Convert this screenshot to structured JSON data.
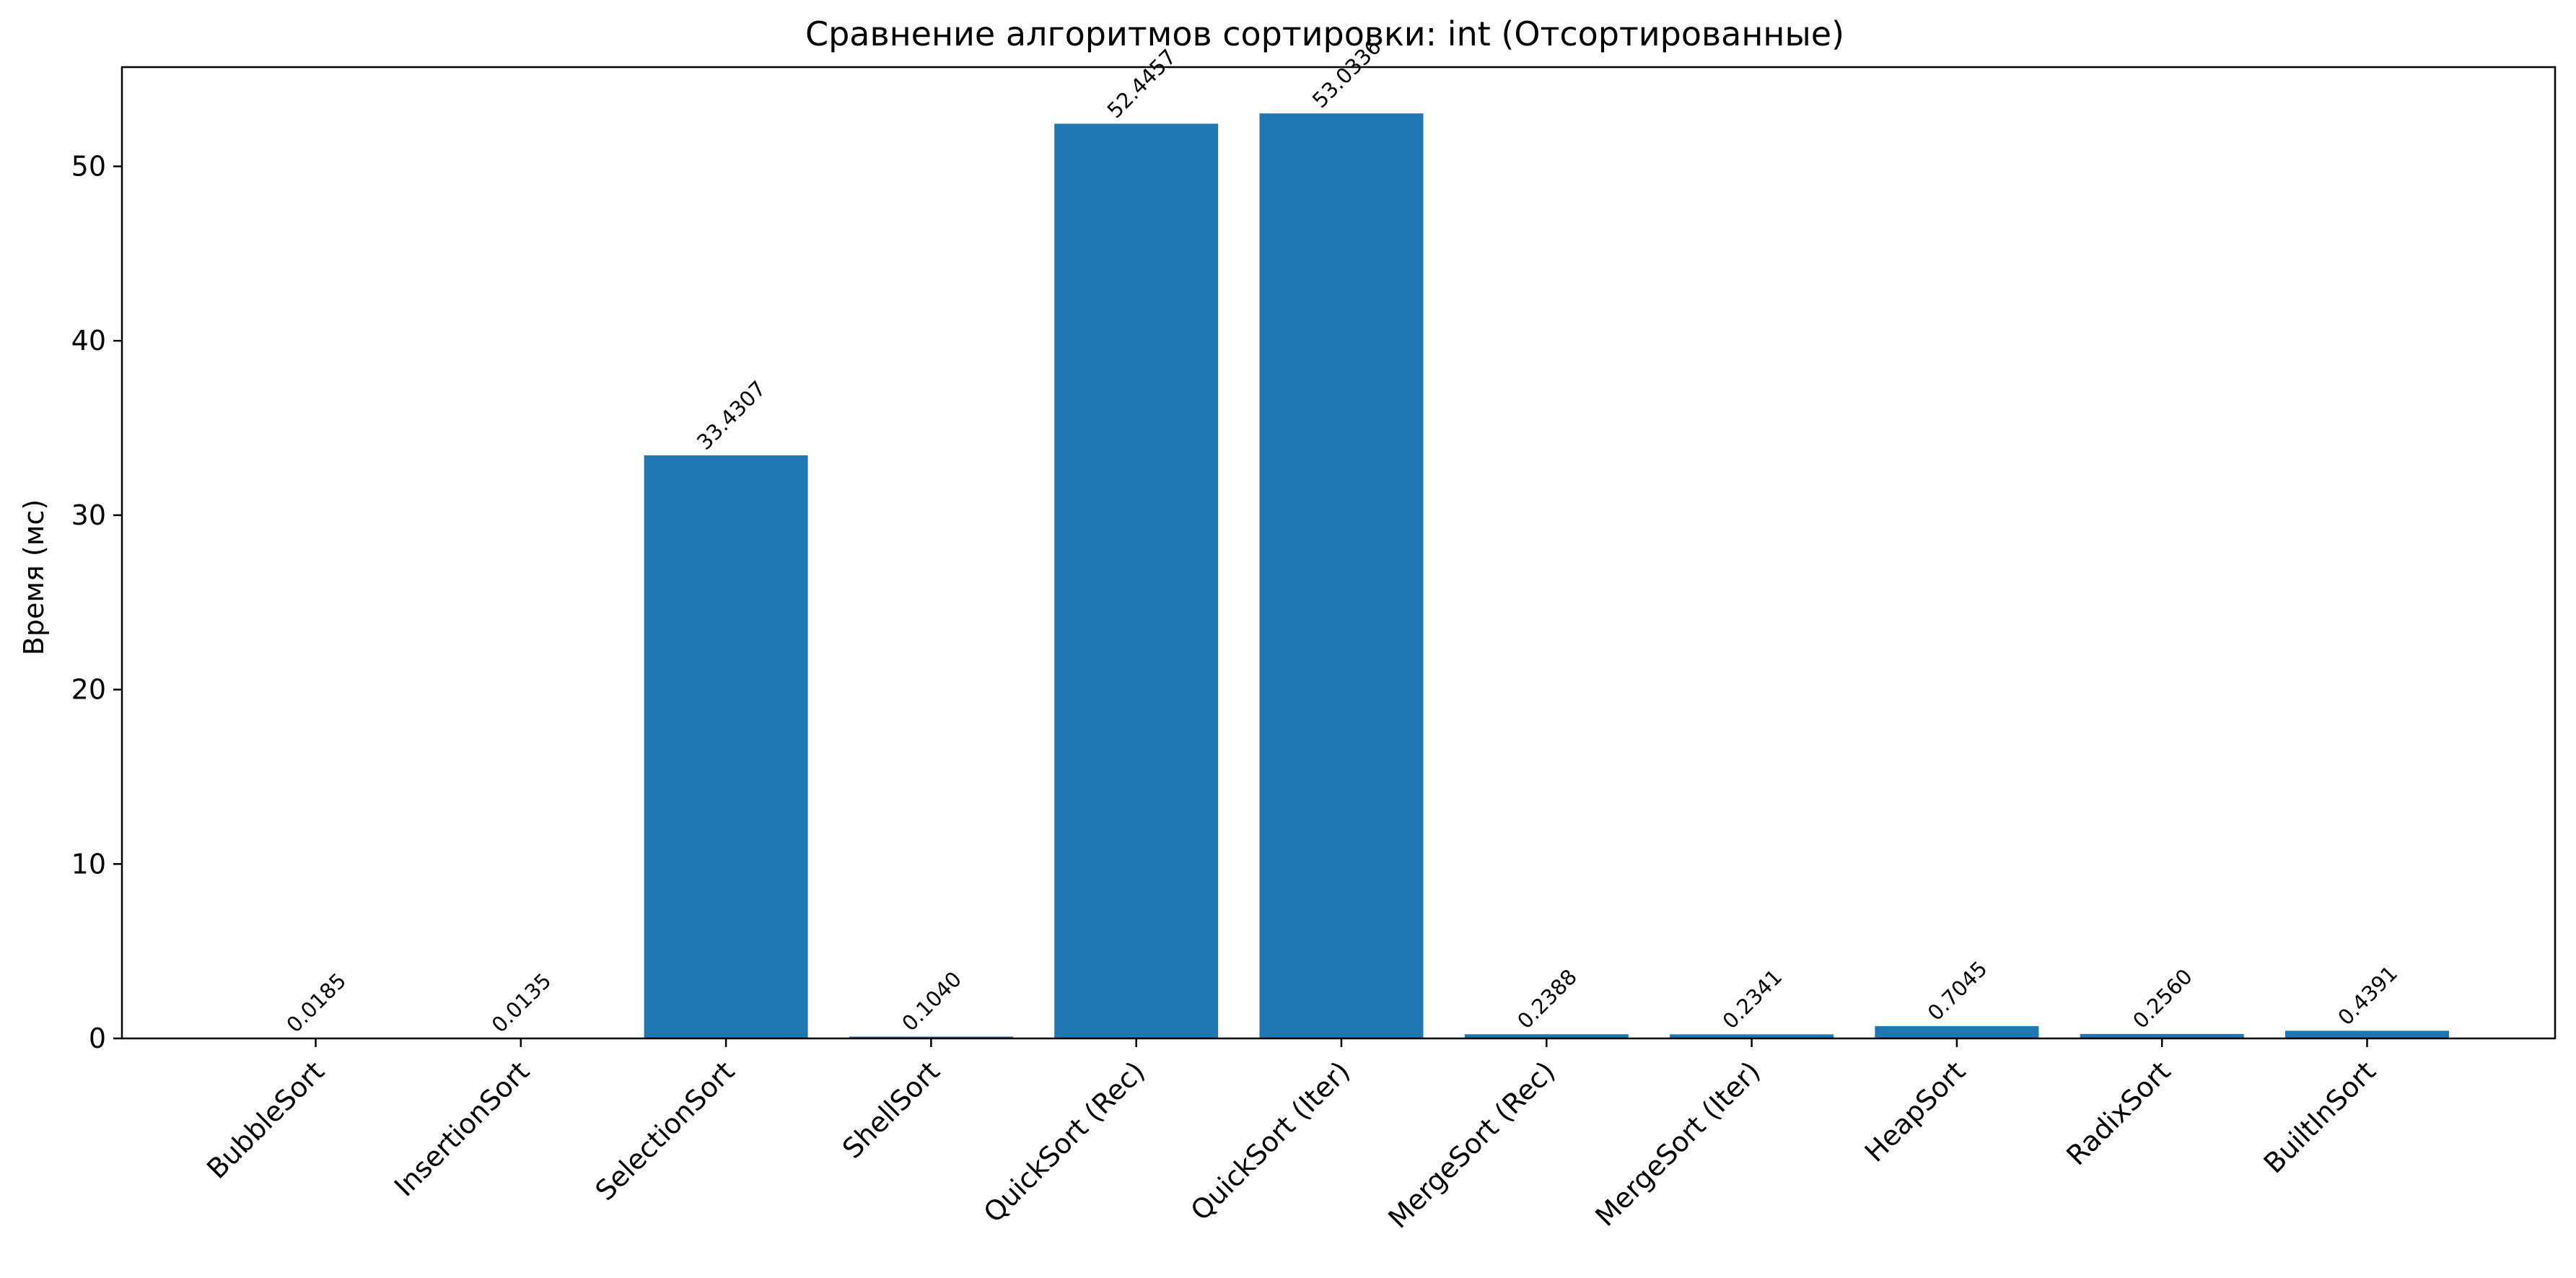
{
  "chart_data": {
    "type": "bar",
    "title": "Сравнение алгоритмов сортировки: int (Отсортированные)",
    "xlabel": "",
    "ylabel": "Время (мс)",
    "ylim": [
      0,
      55.69
    ],
    "yticks": [
      0,
      10,
      20,
      30,
      40,
      50
    ],
    "grid": false,
    "categories": [
      "BubbleSort",
      "InsertionSort",
      "SelectionSort",
      "ShellSort",
      "QuickSort (Rec)",
      "QuickSort (Iter)",
      "MergeSort (Rec)",
      "MergeSort (Iter)",
      "HeapSort",
      "RadixSort",
      "BuiltInSort"
    ],
    "values": [
      0.0185,
      0.0135,
      33.4307,
      0.104,
      52.4457,
      53.0336,
      0.2388,
      0.2341,
      0.7045,
      0.256,
      0.4391
    ],
    "value_labels": [
      "0.0185",
      "0.0135",
      "33.4307",
      "0.1040",
      "52.4457",
      "53.0336",
      "0.2388",
      "0.2341",
      "0.7045",
      "0.2560",
      "0.4391"
    ],
    "bar_color": "#1f77b4"
  }
}
